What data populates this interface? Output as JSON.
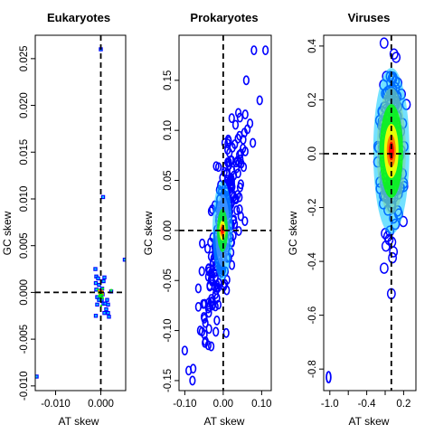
{
  "chart_data": [
    {
      "type": "scatter",
      "title": "Eukaryotes",
      "xlabel": "AT skew",
      "ylabel": "GC skew",
      "xlim": [
        -0.0145,
        0.0055
      ],
      "ylim": [
        -0.0105,
        0.0275
      ],
      "xticks": [
        -0.01,
        0.0
      ],
      "xtick_labels": [
        "-0.010",
        "0.000"
      ],
      "yticks": [
        -0.01,
        -0.005,
        0.0,
        0.005,
        0.01,
        0.015,
        0.02,
        0.025
      ],
      "ytick_labels": [
        "-0.010",
        "-0.005",
        "0.000",
        "0.005",
        "0.010",
        "0.015",
        "0.020",
        "0.025"
      ],
      "reference_lines": {
        "x": 0.0,
        "y": 0.0,
        "style": "dashed"
      },
      "density": "high near origin",
      "points": [
        [
          0.0,
          0.026
        ],
        [
          0.0005,
          0.0102
        ],
        [
          0.0053,
          0.0035
        ],
        [
          0.0023,
          0.0001
        ],
        [
          -0.0142,
          -0.009
        ],
        [
          -0.0012,
          0.0025
        ],
        [
          -0.001,
          0.0017
        ],
        [
          -0.0011,
          0.001
        ],
        [
          -0.001,
          0.0003
        ],
        [
          -0.0008,
          -0.0005
        ],
        [
          -0.0008,
          -0.0013
        ],
        [
          -0.0011,
          -0.0025
        ],
        [
          -0.0006,
          0.0015
        ],
        [
          -0.0004,
          0.0008
        ],
        [
          -0.0002,
          0.0002
        ],
        [
          0.0,
          -0.0003
        ],
        [
          0.0002,
          -0.0008
        ],
        [
          0.0004,
          -0.0002
        ],
        [
          0.0006,
          0.0012
        ],
        [
          0.0008,
          0.0016
        ],
        [
          0.0006,
          -0.0012
        ],
        [
          0.001,
          -0.0012
        ],
        [
          0.0012,
          -0.0018
        ],
        [
          0.0008,
          -0.0022
        ],
        [
          0.0014,
          -0.0008
        ],
        [
          0.0016,
          -0.0022
        ],
        [
          0.0018,
          -0.0026
        ],
        [
          0.0016,
          -0.0013
        ],
        [
          -0.0004,
          -0.0008
        ],
        [
          0.0003,
          0.0004
        ]
      ],
      "hot_points": [
        [
          -0.0002,
          0.0001
        ],
        [
          0.0002,
          -0.0001
        ],
        [
          0.0,
          0.0
        ]
      ]
    },
    {
      "type": "scatter",
      "title": "Prokaryotes",
      "xlabel": "AT skew",
      "ylabel": "GC skew",
      "xlim": [
        -0.115,
        0.125
      ],
      "ylim": [
        -0.16,
        0.195
      ],
      "xticks": [
        -0.1,
        0.0,
        0.1
      ],
      "xtick_labels": [
        "-0.10",
        "0.00",
        "0.10"
      ],
      "yticks": [
        -0.15,
        -0.1,
        -0.05,
        0.0,
        0.05,
        0.1,
        0.15
      ],
      "ytick_labels": [
        "-0.15",
        "-0.10",
        "-0.05",
        "0.00",
        "0.05",
        "0.10",
        "0.15"
      ],
      "reference_lines": {
        "x": 0.0,
        "y": 0.0,
        "style": "dashed"
      },
      "density": "elongated cloud along the diagonal, peak at origin"
    },
    {
      "type": "scatter",
      "title": "Viruses",
      "xlabel": "AT skew",
      "ylabel": "GC skew",
      "xlim": [
        -1.1,
        0.4
      ],
      "ylim": [
        -0.88,
        0.44
      ],
      "xticks": [
        -1.0,
        -0.4,
        0.2
      ],
      "xtick_labels": [
        "-1.0",
        "-0.4",
        "0.2"
      ],
      "xticks_minor": [
        -0.7,
        -0.1
      ],
      "yticks": [
        -0.8,
        -0.6,
        -0.4,
        -0.2,
        0.0,
        0.2,
        0.4
      ],
      "ytick_labels": [
        "-0.8",
        "-0.6",
        "-0.4",
        "-0.2",
        "0.0",
        "0.2",
        "0.4"
      ],
      "reference_lines": {
        "x": 0.0,
        "y": 0.0,
        "style": "dashed"
      },
      "density": "broad blob centred at origin",
      "outliers": [
        [
          -1.02,
          -0.83
        ]
      ]
    }
  ],
  "colors": {
    "density_scale": [
      "#0000ff",
      "#00c8ff",
      "#00ff00",
      "#ffff00",
      "#ff8000",
      "#ff0000"
    ],
    "axis": "#000000",
    "background": "#ffffff"
  }
}
